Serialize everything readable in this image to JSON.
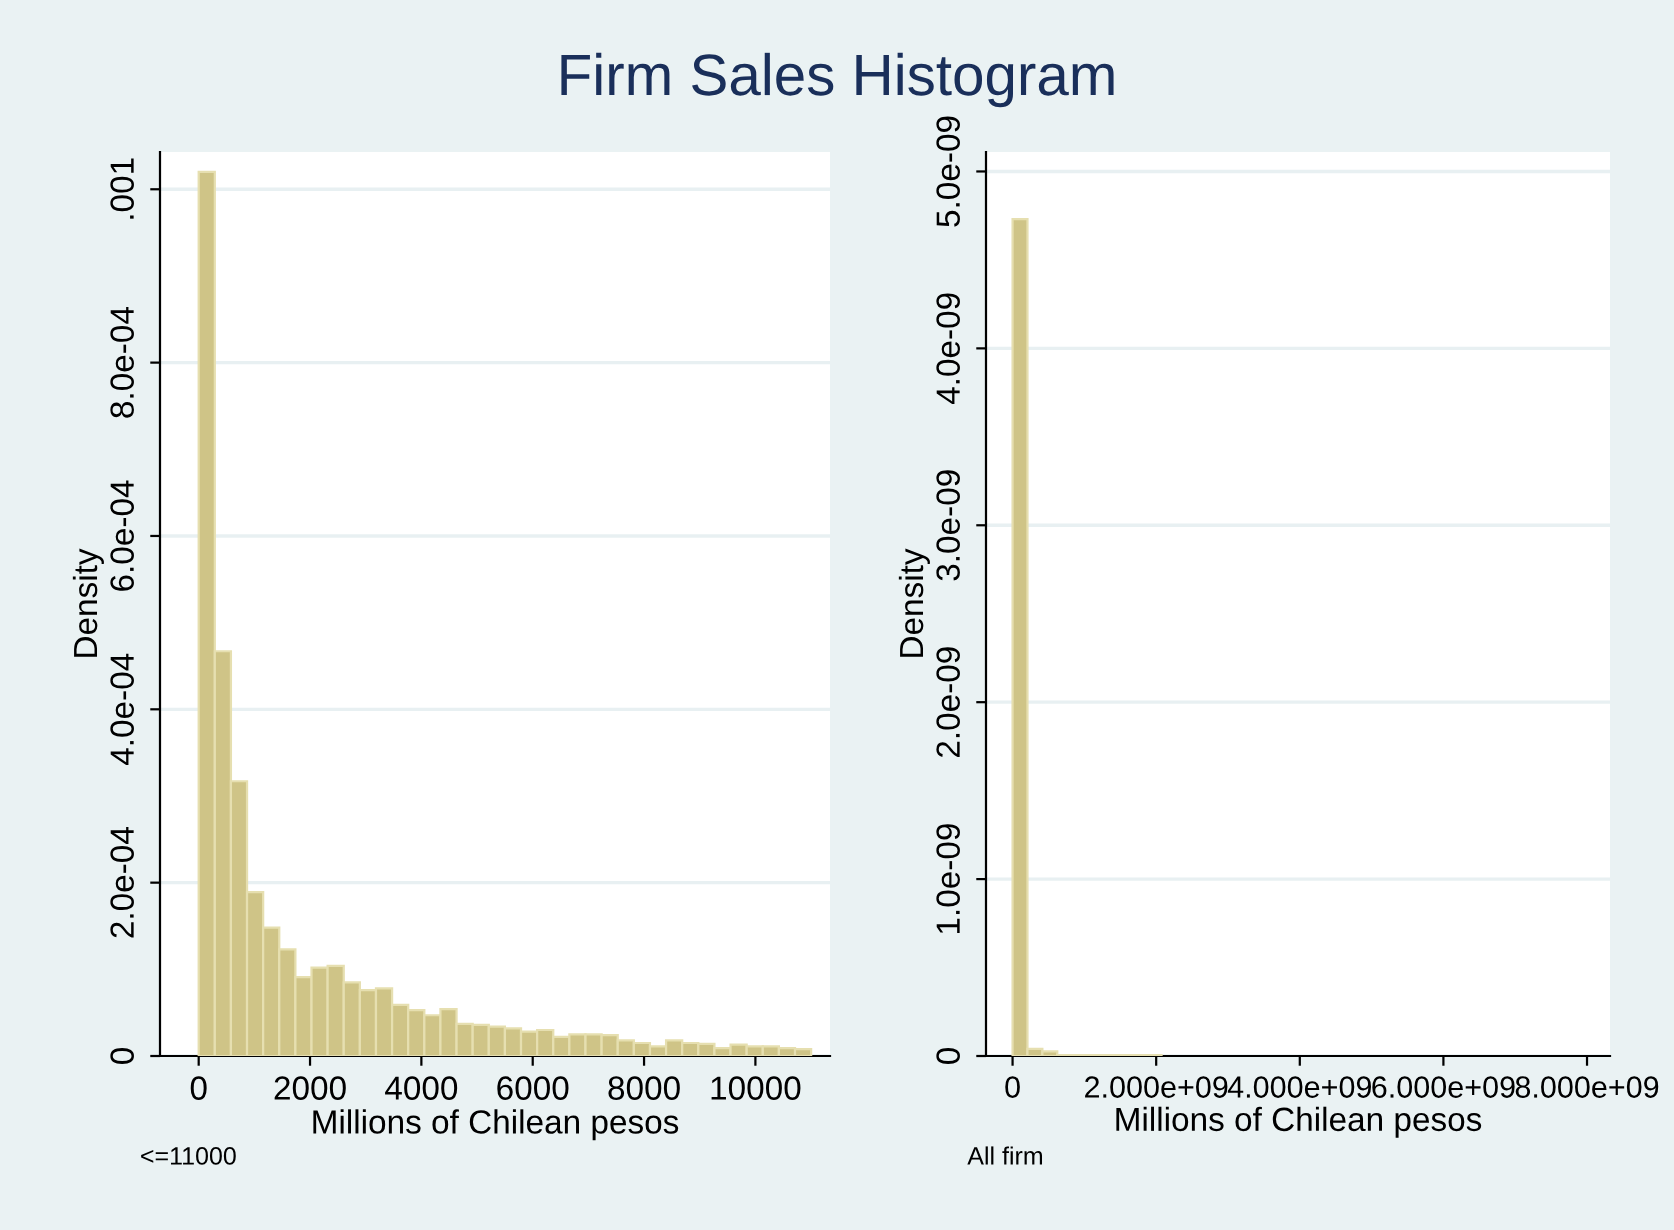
{
  "chart_data": [
    {
      "type": "histogram",
      "title": "Firm Sales Histogram",
      "xlabel": "Millions of Chilean pesos",
      "ylabel": "Density",
      "color": "#cfc487",
      "bins": [
        0,
        289.5,
        579,
        868.5,
        1158,
        1447.5,
        1737,
        2026.5,
        2316,
        2605.5,
        2895,
        3184.5,
        3474,
        3763.5,
        4053,
        4342.5,
        4632,
        4921.5,
        5211,
        5500.5,
        5790,
        6079.5,
        6369,
        6658.5,
        6948,
        7237.5,
        7527,
        7816.5,
        8106,
        8395.5,
        8685,
        8974.5,
        9264,
        9553.5,
        9843,
        10132.5,
        10422,
        10711.5,
        11001
      ],
      "values": [
        0.00102,
        0.000467,
        0.000317,
        0.000189,
        0.000148,
        0.000123,
        9.1e-05,
        0.000102,
        0.000104,
        8.5e-05,
        7.6e-05,
        7.8e-05,
        5.9e-05,
        5.3e-05,
        4.7e-05,
        5.4e-05,
        3.7e-05,
        3.6e-05,
        3.4e-05,
        3.2e-05,
        2.8e-05,
        3e-05,
        2.2e-05,
        2.5e-05,
        2.5e-05,
        2.4e-05,
        1.8e-05,
        1.5e-05,
        1.1e-05,
        1.8e-05,
        1.5e-05,
        1.4e-05,
        9e-06,
        1.3e-05,
        1.1e-05,
        1.1e-05,
        9e-06,
        8e-06
      ],
      "xlim": [
        -695,
        11340
      ],
      "ylim": [
        0,
        0.001043
      ],
      "xticks": [
        0,
        2000,
        4000,
        6000,
        8000,
        10000
      ],
      "yticks": [
        0,
        {
          "value": 0.0002,
          "label": "2.0e-04"
        },
        {
          "value": 0.0004,
          "label": "4.0e-04"
        },
        {
          "value": 0.0006,
          "label": "6.0e-04"
        },
        {
          "value": 0.0008,
          "label": "8.0e-04"
        },
        {
          "value": 0.001,
          "label": ".001"
        }
      ],
      "grid": "y",
      "annotations": [
        "<=11000"
      ]
    },
    {
      "type": "histogram",
      "xlabel": "Millions of Chilean pesos",
      "ylabel": "Density",
      "color": "#cfc487",
      "bins": [
        0,
        207500000,
        415000000,
        622500000,
        830000000,
        1037500000,
        1245000000,
        1452500000,
        1660000000,
        1867500000,
        2075000000
      ],
      "values": [
        4.73e-09,
        4e-11,
        2.6e-11,
        5e-12,
        5e-12,
        5e-12,
        5e-12,
        5e-12,
        5e-12,
        5e-12
      ],
      "xlim": [
        -370000000,
        8320000000
      ],
      "ylim": [
        0,
        5.11e-09
      ],
      "xticks": [
        0,
        {
          "value": 2000000000,
          "label": "2.000e+09"
        },
        {
          "value": 4000000000,
          "label": "4.000e+09"
        },
        {
          "value": 6000000000,
          "label": "6.000e+09"
        },
        {
          "value": 8000000000,
          "label": "8.000e+09"
        }
      ],
      "yticks": [
        0,
        {
          "value": 1e-09,
          "label": "1.0e-09"
        },
        {
          "value": 2e-09,
          "label": "2.0e-09"
        },
        {
          "value": 3e-09,
          "label": "3.0e-09"
        },
        {
          "value": 4e-09,
          "label": "4.0e-09"
        },
        {
          "value": 5e-09,
          "label": "5.0e-09"
        }
      ],
      "grid": "y",
      "annotations": [
        "All firm"
      ]
    }
  ]
}
